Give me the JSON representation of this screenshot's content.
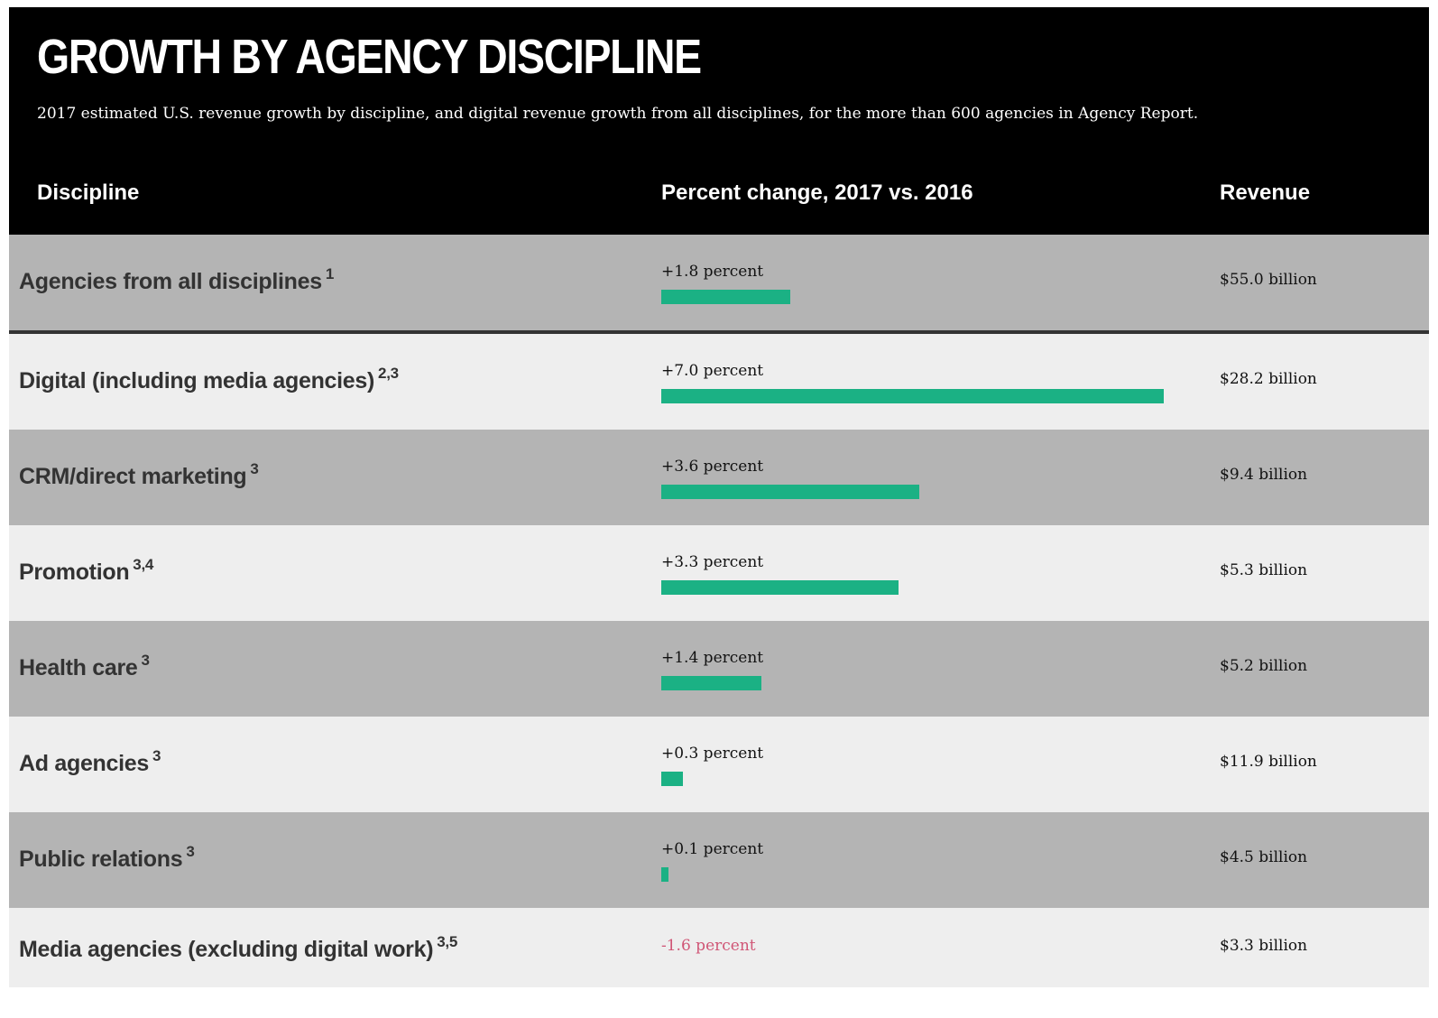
{
  "chart_data": {
    "type": "table",
    "title": "GROWTH BY AGENCY DISCIPLINE",
    "subtitle": "2017 estimated U.S. revenue growth by discipline, and digital revenue growth from all disciplines, for the more than 600 agencies in Agency Report.",
    "columns": {
      "discipline": "Discipline",
      "change": "Percent change, 2017 vs. 2016",
      "revenue": "Revenue"
    },
    "bar_max": 7.0,
    "colors": {
      "positive": "#1bb184",
      "negative": "#d05676",
      "header_bg": "#000000"
    },
    "rows": [
      {
        "discipline": "Agencies from all disciplines",
        "note": "1",
        "change_value": 1.8,
        "change_label": "+1.8 percent",
        "revenue": "$55.0 billion"
      },
      {
        "discipline": "Digital (including media agencies)",
        "note": "2,3",
        "change_value": 7.0,
        "change_label": "+7.0 percent",
        "revenue": "$28.2 billion"
      },
      {
        "discipline": "CRM/direct marketing",
        "note": "3",
        "change_value": 3.6,
        "change_label": "+3.6 percent",
        "revenue": "$9.4 billion"
      },
      {
        "discipline": "Promotion",
        "note": "3,4",
        "change_value": 3.3,
        "change_label": "+3.3 percent",
        "revenue": "$5.3 billion"
      },
      {
        "discipline": "Health care",
        "note": "3",
        "change_value": 1.4,
        "change_label": "+1.4 percent",
        "revenue": "$5.2 billion"
      },
      {
        "discipline": "Ad agencies",
        "note": "3",
        "change_value": 0.3,
        "change_label": "+0.3 percent",
        "revenue": "$11.9 billion"
      },
      {
        "discipline": "Public relations",
        "note": "3",
        "change_value": 0.1,
        "change_label": "+0.1 percent",
        "revenue": "$4.5 billion"
      },
      {
        "discipline": "Media agencies (excluding digital work)",
        "note": "3,5",
        "change_value": -1.6,
        "change_label": "-1.6 percent",
        "revenue": "$3.3 billion"
      }
    ]
  }
}
